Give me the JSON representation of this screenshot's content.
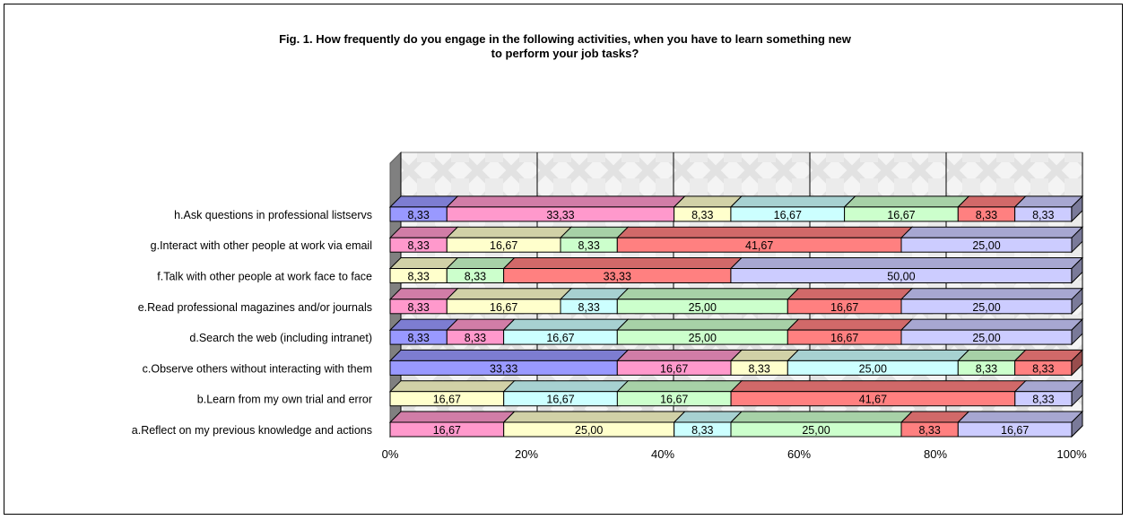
{
  "chart_data": {
    "type": "bar",
    "orientation": "horizontal",
    "stacked": "100%",
    "title_lines": [
      "Fig. 1. How frequently do you engage in the following activities, when you have to learn something new",
      "to perform your job tasks?"
    ],
    "x_ticks": [
      "0%",
      "20%",
      "40%",
      "60%",
      "80%",
      "100%"
    ],
    "xlim": [
      0,
      100
    ],
    "grid": true,
    "legend": "none",
    "categories": [
      "a.Reflect on my previous knowledge and actions",
      "b.Learn from my own trial and error",
      "c.Observe others without interacting with them",
      "d.Search the web (including intranet)",
      "e.Read professional magazines and/or journals",
      "f.Talk with other people at work face to face",
      "g.Interact with other people at work via email",
      "h.Ask questions in professional listservs"
    ],
    "segments": [
      [
        {
          "value": 16.67,
          "label": "16,67",
          "color": "#ff99cc"
        },
        {
          "value": 25.0,
          "label": "25,00",
          "color": "#ffffcc"
        },
        {
          "value": 8.33,
          "label": "8,33",
          "color": "#ccffff"
        },
        {
          "value": 25.0,
          "label": "25,00",
          "color": "#ccffcc"
        },
        {
          "value": 8.33,
          "label": "8,33",
          "color": "#ff8080"
        },
        {
          "value": 16.67,
          "label": "16,67",
          "color": "#ccccff"
        }
      ],
      [
        {
          "value": 16.67,
          "label": "16,67",
          "color": "#ffffcc"
        },
        {
          "value": 16.67,
          "label": "16,67",
          "color": "#ccffff"
        },
        {
          "value": 16.67,
          "label": "16,67",
          "color": "#ccffcc"
        },
        {
          "value": 41.67,
          "label": "41,67",
          "color": "#ff8080"
        },
        {
          "value": 8.33,
          "label": "8,33",
          "color": "#ccccff"
        }
      ],
      [
        {
          "value": 33.33,
          "label": "33,33",
          "color": "#9999ff"
        },
        {
          "value": 16.67,
          "label": "16,67",
          "color": "#ff99cc"
        },
        {
          "value": 8.33,
          "label": "8,33",
          "color": "#ffffcc"
        },
        {
          "value": 25.0,
          "label": "25,00",
          "color": "#ccffff"
        },
        {
          "value": 8.33,
          "label": "8,33",
          "color": "#ccffcc"
        },
        {
          "value": 8.33,
          "label": "8,33",
          "color": "#ff8080"
        }
      ],
      [
        {
          "value": 8.33,
          "label": "8,33",
          "color": "#9999ff"
        },
        {
          "value": 8.33,
          "label": "8,33",
          "color": "#ff99cc"
        },
        {
          "value": 16.67,
          "label": "16,67",
          "color": "#ccffff"
        },
        {
          "value": 25.0,
          "label": "25,00",
          "color": "#ccffcc"
        },
        {
          "value": 16.67,
          "label": "16,67",
          "color": "#ff8080"
        },
        {
          "value": 25.0,
          "label": "25,00",
          "color": "#ccccff"
        }
      ],
      [
        {
          "value": 8.33,
          "label": "8,33",
          "color": "#ff99cc"
        },
        {
          "value": 16.67,
          "label": "16,67",
          "color": "#ffffcc"
        },
        {
          "value": 8.33,
          "label": "8,33",
          "color": "#ccffff"
        },
        {
          "value": 25.0,
          "label": "25,00",
          "color": "#ccffcc"
        },
        {
          "value": 16.67,
          "label": "16,67",
          "color": "#ff8080"
        },
        {
          "value": 25.0,
          "label": "25,00",
          "color": "#ccccff"
        }
      ],
      [
        {
          "value": 8.33,
          "label": "8,33",
          "color": "#ffffcc"
        },
        {
          "value": 8.33,
          "label": "8,33",
          "color": "#ccffcc"
        },
        {
          "value": 33.33,
          "label": "33,33",
          "color": "#ff8080"
        },
        {
          "value": 50.0,
          "label": "50,00",
          "color": "#ccccff"
        }
      ],
      [
        {
          "value": 8.33,
          "label": "8,33",
          "color": "#ff99cc"
        },
        {
          "value": 16.67,
          "label": "16,67",
          "color": "#ffffcc"
        },
        {
          "value": 8.33,
          "label": "8,33",
          "color": "#ccffcc"
        },
        {
          "value": 41.67,
          "label": "41,67",
          "color": "#ff8080"
        },
        {
          "value": 25.0,
          "label": "25,00",
          "color": "#ccccff"
        }
      ],
      [
        {
          "value": 8.33,
          "label": "8,33",
          "color": "#9999ff"
        },
        {
          "value": 33.33,
          "label": "33,33",
          "color": "#ff99cc"
        },
        {
          "value": 8.33,
          "label": "8,33",
          "color": "#ffffcc"
        },
        {
          "value": 16.67,
          "label": "16,67",
          "color": "#ccffff"
        },
        {
          "value": 16.67,
          "label": "16,67",
          "color": "#ccffcc"
        },
        {
          "value": 8.33,
          "label": "8,33",
          "color": "#ff8080"
        },
        {
          "value": 8.33,
          "label": "8,33",
          "color": "#ccccff"
        }
      ]
    ]
  }
}
